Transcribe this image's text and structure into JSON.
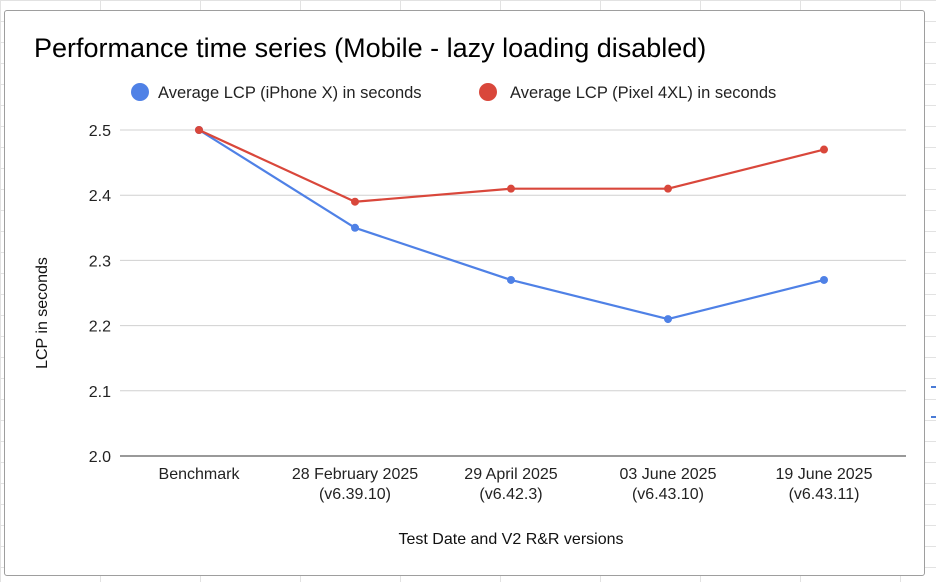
{
  "chart_data": {
    "type": "line",
    "title": "Performance time series (Mobile - lazy loading disabled)",
    "xlabel": "Test Date and V2 R&R versions",
    "ylabel": "LCP in seconds",
    "ylim": [
      2.0,
      2.5
    ],
    "yticks": [
      "2.0",
      "2.1",
      "2.2",
      "2.3",
      "2.4",
      "2.5"
    ],
    "grid": true,
    "legend_position": "top",
    "categories": [
      [
        "Benchmark"
      ],
      [
        "28 February 2025",
        "(v6.39.10)"
      ],
      [
        "29 April 2025",
        "(v6.42.3)"
      ],
      [
        "03 June 2025",
        "(v6.43.10)"
      ],
      [
        "19 June 2025",
        "(v6.43.11)"
      ]
    ],
    "series": [
      {
        "name": "Average LCP (iPhone X) in seconds",
        "color": "#4f81e6",
        "values": [
          2.5,
          2.35,
          2.27,
          2.21,
          2.27
        ]
      },
      {
        "name": "Average LCP (Pixel 4XL) in seconds",
        "color": "#d9473b",
        "values": [
          2.5,
          2.39,
          2.41,
          2.41,
          2.47
        ]
      }
    ]
  }
}
